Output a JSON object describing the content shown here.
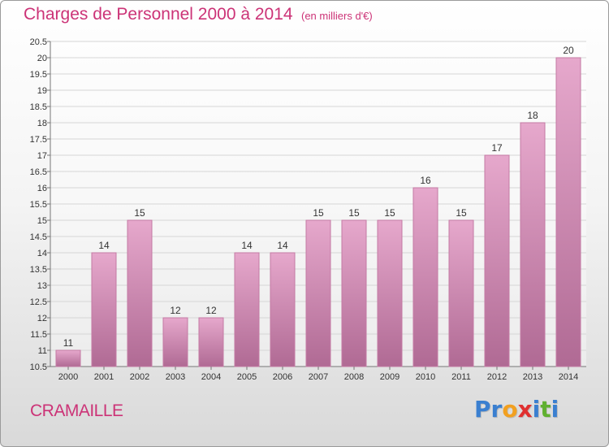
{
  "title": "Charges de Personnel 2000 à 2014",
  "subtitle": "(en milliers d'€)",
  "commune": "CRAMAILLE",
  "logo": {
    "letters": [
      {
        "ch": "P",
        "color": "#3a7fd0"
      },
      {
        "ch": "r",
        "color": "#3a7fd0"
      },
      {
        "ch": "o",
        "color": "#f2a020"
      },
      {
        "ch": "x",
        "color": "#e03030"
      },
      {
        "ch": "i",
        "color": "#3a7fd0"
      },
      {
        "ch": "t",
        "color": "#60b030"
      },
      {
        "ch": "i",
        "color": "#3a7fd0"
      }
    ]
  },
  "colors": {
    "bar_top": "#e6a8cc",
    "bar_bottom": "#b06a94",
    "text": "#cc3377"
  },
  "chart_data": {
    "type": "bar",
    "categories": [
      "2000",
      "2001",
      "2002",
      "2003",
      "2004",
      "2005",
      "2006",
      "2007",
      "2008",
      "2009",
      "2010",
      "2011",
      "2012",
      "2013",
      "2014"
    ],
    "values": [
      11,
      14,
      15,
      12,
      12,
      14,
      14,
      15,
      15,
      15,
      16,
      15,
      17,
      18,
      20
    ],
    "ylim": [
      10.5,
      20.5
    ],
    "yticks": [
      10.5,
      11,
      11.5,
      12,
      12.5,
      13,
      13.5,
      14,
      14.5,
      15,
      15.5,
      16,
      16.5,
      17,
      17.5,
      18,
      18.5,
      19,
      19.5,
      20,
      20.5
    ],
    "grid": true
  }
}
